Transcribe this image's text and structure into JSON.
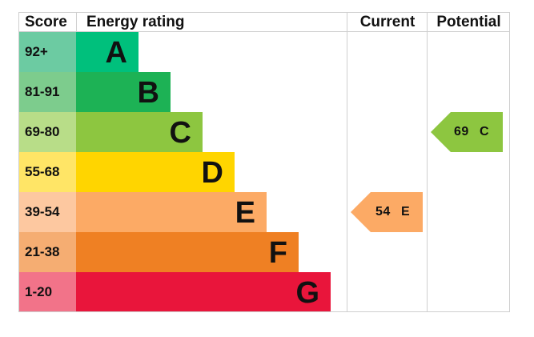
{
  "headers": {
    "score": "Score",
    "energy_rating": "Energy rating",
    "current": "Current",
    "potential": "Potential"
  },
  "bands": [
    {
      "score": "92+",
      "letter": "A",
      "color": "#00c07c",
      "score_bg": "#6ccba2"
    },
    {
      "score": "81-91",
      "letter": "B",
      "color": "#1db255",
      "score_bg": "#7dcc8d"
    },
    {
      "score": "69-80",
      "letter": "C",
      "color": "#8dc640",
      "score_bg": "#b8dd88"
    },
    {
      "score": "55-68",
      "letter": "D",
      "color": "#ffd500",
      "score_bg": "#ffe566"
    },
    {
      "score": "39-54",
      "letter": "E",
      "color": "#fcaa65",
      "score_bg": "#fdc8a0"
    },
    {
      "score": "21-38",
      "letter": "F",
      "color": "#ef8023",
      "score_bg": "#f5ad72"
    },
    {
      "score": "1-20",
      "letter": "G",
      "color": "#e9153b",
      "score_bg": "#f27389"
    }
  ],
  "current": {
    "value": "54",
    "letter": "E",
    "band_index": 4,
    "color": "#fcaa65"
  },
  "potential": {
    "value": "69",
    "letter": "C",
    "band_index": 2,
    "color": "#8dc640"
  }
}
